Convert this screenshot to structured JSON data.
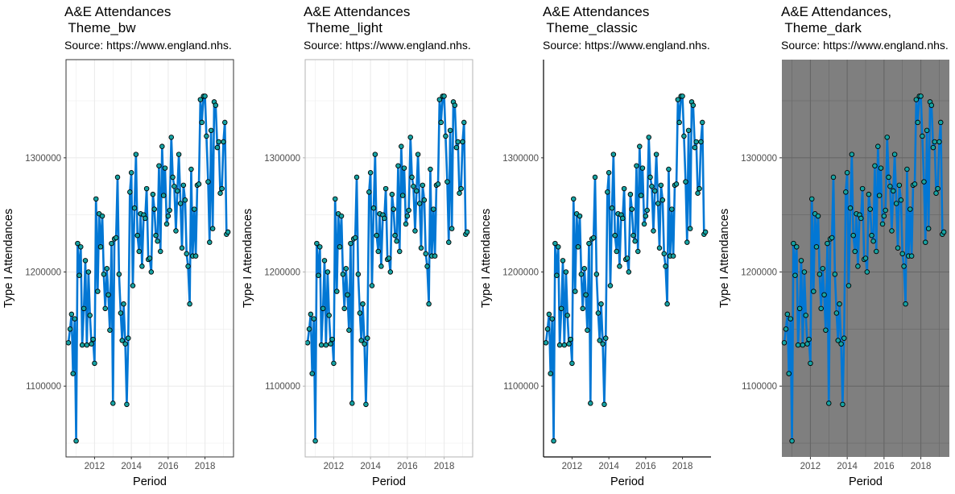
{
  "figure": {
    "panels": [
      {
        "title": "A&E Attendances\n Theme_bw",
        "subtitle": "Source: https://www.england.nhs.",
        "theme": "bw"
      },
      {
        "title": "A&E Attendances\n Theme_light",
        "subtitle": "Source: https://www.england.nhs.",
        "theme": "light"
      },
      {
        "title": "A&E Attendances\n Theme_classic",
        "subtitle": "Source: https://www.england.nhs.",
        "theme": "classic"
      },
      {
        "title": "A&E Attendances,\n Theme_dark",
        "subtitle": "Source: https://www.england.nhs.",
        "theme": "dark"
      }
    ]
  },
  "chart_data": {
    "type": "line",
    "series_name": "",
    "x_axis": {
      "label": "Period",
      "ticks": [
        "2012",
        "2014",
        "2016",
        "2018"
      ],
      "range": [
        2010.45,
        2019.55
      ]
    },
    "y_axis": {
      "label": "Type I Attendances",
      "ticks": [
        "1100000",
        "1200000",
        "1300000"
      ],
      "range": [
        1038000,
        1386000
      ]
    },
    "grid": true,
    "colors": {
      "line": "#0277d4",
      "point_fill": "#16a3a3",
      "point_stroke": "#000000",
      "dark_panel_bg": "#7f7f7f",
      "dark_grid": "#666666",
      "light_grid": "#ebebeb",
      "bw_border": "#333333"
    },
    "x": [
      2010.58,
      2010.67,
      2010.75,
      2010.83,
      2010.92,
      2011.0,
      2011.08,
      2011.17,
      2011.25,
      2011.33,
      2011.42,
      2011.5,
      2011.58,
      2011.67,
      2011.75,
      2011.83,
      2011.92,
      2012.0,
      2012.08,
      2012.17,
      2012.25,
      2012.33,
      2012.42,
      2012.5,
      2012.58,
      2012.67,
      2012.75,
      2012.83,
      2012.92,
      2013.0,
      2013.08,
      2013.17,
      2013.25,
      2013.33,
      2013.42,
      2013.5,
      2013.58,
      2013.67,
      2013.75,
      2013.83,
      2013.92,
      2014.0,
      2014.08,
      2014.17,
      2014.25,
      2014.33,
      2014.42,
      2014.5,
      2014.58,
      2014.67,
      2014.75,
      2014.83,
      2014.92,
      2015.0,
      2015.08,
      2015.17,
      2015.25,
      2015.33,
      2015.42,
      2015.5,
      2015.58,
      2015.67,
      2015.75,
      2015.83,
      2015.92,
      2016.0,
      2016.08,
      2016.17,
      2016.25,
      2016.33,
      2016.42,
      2016.5,
      2016.58,
      2016.67,
      2016.75,
      2016.83,
      2016.92,
      2017.0,
      2017.08,
      2017.17,
      2017.25,
      2017.33,
      2017.42,
      2017.5,
      2017.58,
      2017.67,
      2017.75,
      2017.83,
      2017.92,
      2018.0,
      2018.08,
      2018.17,
      2018.25,
      2018.33,
      2018.42,
      2018.5,
      2018.58,
      2018.67,
      2018.75,
      2018.83,
      2018.92,
      2019.0,
      2019.08,
      2019.17,
      2019.25
    ],
    "y": [
      1138000,
      1150000,
      1163000,
      1111000,
      1159000,
      1052000,
      1225000,
      1197000,
      1222000,
      1136000,
      1168000,
      1210000,
      1136000,
      1200000,
      1162000,
      1137000,
      1141000,
      1120000,
      1264000,
      1183000,
      1251000,
      1222000,
      1249000,
      1198000,
      1168000,
      1203000,
      1180000,
      1149000,
      1225000,
      1085000,
      1229000,
      1230000,
      1283000,
      1198000,
      1164000,
      1140000,
      1172000,
      1137000,
      1084000,
      1142000,
      1270000,
      1287000,
      1188000,
      1256000,
      1303000,
      1232000,
      1218000,
      1251000,
      1205000,
      1250000,
      1247000,
      1273000,
      1211000,
      1212000,
      1200000,
      1268000,
      1255000,
      1232000,
      1227000,
      1293000,
      1218000,
      1310000,
      1267000,
      1291000,
      1242000,
      1249000,
      1254000,
      1318000,
      1283000,
      1275000,
      1236000,
      1271000,
      1303000,
      1260000,
      1221000,
      1276000,
      1263000,
      1216000,
      1205000,
      1172000,
      1290000,
      1214000,
      1255000,
      1214000,
      1276000,
      1277000,
      1351000,
      1331000,
      1354000,
      1354000,
      1319000,
      1279000,
      1226000,
      1324000,
      1238000,
      1349000,
      1346000,
      1309000,
      1314000,
      1269000,
      1273000,
      1314000,
      1331000,
      1233000,
      1235000
    ],
    "y_override_note": ""
  }
}
